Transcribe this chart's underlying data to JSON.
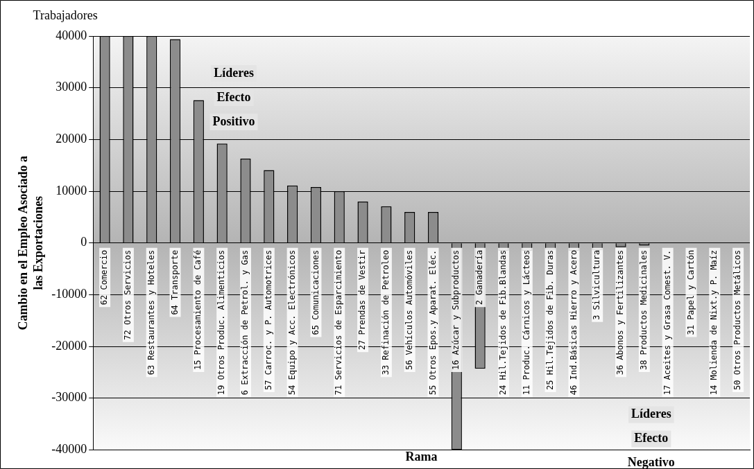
{
  "chart_data": {
    "type": "bar",
    "xlabel": "Rama",
    "ylabel": "Cambio en el Empleo Asociado a las Exportaciones",
    "categories": [
      "62 Comercio",
      "72 Otros Servicios",
      "63 Restaurantes y Hoteles",
      "64 Transporte",
      "15 Procesamiento de Café",
      "19 Otros Produc. Alimenticios",
      "6 Extracción de Petrol. y Gas",
      "57 Carroc. y P. Automotrices",
      "54 Equipo y Acc. Electrónicos",
      "65 Comunicaciones",
      "71 Servicios de Esparcimiento",
      "27 Prendas de Vestir",
      "33 Refinación de Petroleo",
      "56 Vehículos Automóviles",
      "55 Otros Epos.y Aparat. Eléc.",
      "16 Azúcar y Subproductos",
      "2 Ganadería",
      "24 Hil.Tejidos de Fib.Blandas",
      "11 Produc. Cárnicos y Lácteos",
      "25 Hil.Tejidos de Fib. Duras",
      "46 Ind.Básicas Hierro y Acero",
      "3 Silvicultura",
      "36 Abonos y Fertilizantes",
      "38 Productos Medicinales",
      "17 Aceites y Grasa Comest. V.",
      "31 Papel y Cartón",
      "14 Molienda de Nixt.y P. Maíz",
      "50 Otros Productos Metálicos"
    ],
    "values": [
      40000,
      40000,
      40000,
      39400,
      27600,
      19200,
      16300,
      14100,
      11100,
      10800,
      10000,
      8000,
      7100,
      6000,
      6000,
      -40000,
      -24300,
      -1500,
      -1500,
      -1300,
      -1500,
      -1400,
      -800,
      -500,
      0,
      0,
      0,
      0
    ],
    "color": "#8c8c8c",
    "ylim": [
      -40000,
      40000
    ],
    "yticks": [
      -40000,
      -30000,
      -20000,
      -10000,
      0,
      10000,
      20000,
      30000,
      40000
    ],
    "grid": "y",
    "legend": false,
    "annotations": [
      "Trabajadores",
      "Líderes Efecto Positivo",
      "Líderes Efecto Negativo"
    ]
  }
}
